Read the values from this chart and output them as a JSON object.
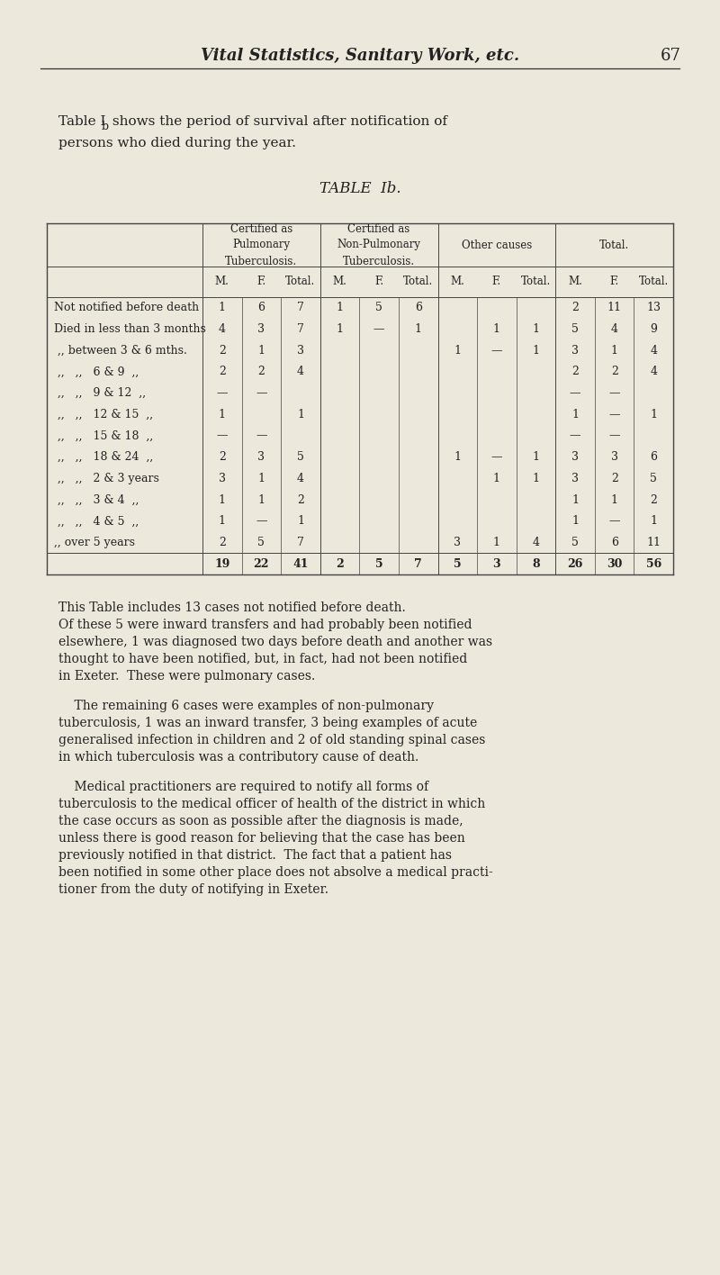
{
  "page_header": "Vital Statistics, Sanitary Work, etc.",
  "page_number": "67",
  "intro_line1": "Table I",
  "intro_line1b": "b",
  "intro_line1c": " shows the period of survival after notification of",
  "intro_line2": "persons who died during the year.",
  "table_title": "TABLE  Ib.",
  "bg_color": "#ede8dc",
  "col_groups": [
    "Certified as\nPulmonary\nTuberculosis.",
    "Certified as\nNon-Pulmonary\nTuberculosis.",
    "Other causes",
    "Total."
  ],
  "sub_headers": [
    "M.",
    "F.",
    "Total.",
    "M.",
    "F.",
    "Total.",
    "M.",
    "F.",
    "Total.",
    "M.",
    "F.",
    "Total."
  ],
  "rows": [
    {
      "label": "Not notified before death",
      "indent": false,
      "vals": [
        "1",
        "6",
        "7",
        "1",
        "5",
        "6",
        "",
        "",
        "",
        "2",
        "11",
        "13"
      ]
    },
    {
      "label": "Died in less than 3 months",
      "indent": false,
      "vals": [
        "4",
        "3",
        "7",
        "1",
        "—",
        "1",
        "",
        "1",
        "1",
        "5",
        "4",
        "9"
      ]
    },
    {
      "label": ",, between 3 & 6 mths.",
      "indent": true,
      "vals": [
        "2",
        "1",
        "3",
        "",
        "",
        "",
        "1",
        "—",
        "1",
        "3",
        "1",
        "4"
      ]
    },
    {
      "label": ",,   ,,   6 & 9  ,,",
      "indent": true,
      "vals": [
        "2",
        "2",
        "4",
        "",
        "",
        "",
        "",
        "",
        "",
        "2",
        "2",
        "4"
      ]
    },
    {
      "label": ",,   ,,   9 & 12  ,,",
      "indent": true,
      "vals": [
        "—",
        "—",
        "",
        "",
        "",
        "",
        "",
        "",
        "",
        "—",
        "—",
        ""
      ]
    },
    {
      "label": ",,   ,,   12 & 15  ,,",
      "indent": true,
      "vals": [
        "1",
        "",
        "1",
        "",
        "",
        "",
        "",
        "",
        "",
        "1",
        "—",
        "1"
      ]
    },
    {
      "label": ",,   ,,   15 & 18  ,,",
      "indent": true,
      "vals": [
        "—",
        "—",
        "",
        "",
        "",
        "",
        "",
        "",
        "",
        "—",
        "—",
        ""
      ]
    },
    {
      "label": ",,   ,,   18 & 24  ,,",
      "indent": true,
      "vals": [
        "2",
        "3",
        "5",
        "",
        "",
        "",
        "1",
        "—",
        "1",
        "3",
        "3",
        "6"
      ]
    },
    {
      "label": ",,   ,,   2 & 3 years",
      "indent": true,
      "vals": [
        "3",
        "1",
        "4",
        "",
        "",
        "",
        "",
        "1",
        "1",
        "3",
        "2",
        "5"
      ]
    },
    {
      "label": ",,   ,,   3 & 4  ,,",
      "indent": true,
      "vals": [
        "1",
        "1",
        "2",
        "",
        "",
        "",
        "",
        "",
        "",
        "1",
        "1",
        "2"
      ]
    },
    {
      "label": ",,   ,,   4 & 5  ,,",
      "indent": true,
      "vals": [
        "1",
        "—",
        "1",
        "",
        "",
        "",
        "",
        "",
        "",
        "1",
        "—",
        "1"
      ]
    },
    {
      "label": ",, over 5 years",
      "indent": false,
      "vals": [
        "2",
        "5",
        "7",
        "",
        "",
        "",
        "3",
        "1",
        "4",
        "5",
        "6",
        "11"
      ]
    },
    {
      "label": "",
      "indent": false,
      "is_total": true,
      "vals": [
        "19",
        "22",
        "41",
        "2",
        "5",
        "7",
        "5",
        "3",
        "8",
        "26",
        "30",
        "56"
      ]
    }
  ],
  "footnote_paragraphs": [
    "This Table includes 13 cases not notified before death.\nOf these 5 were inward transfers and had probably been notified\nelsewhere, 1 was diagnosed two days before death and another was\nthought to have been notified, but, in fact, had not been notified\nin Exeter.  These were pulmonary cases.",
    "    The remaining 6 cases were examples of non-pulmonary\ntuberculosis, 1 was an inward transfer, 3 being examples of acute\ngeneralised infection in children and 2 of old standing spinal cases\nin which tuberculosis was a contributory cause of death.",
    "    Medical practitioners are required to notify all forms of\ntuberculosis to the medical officer of health of the district in which\nthe case occurs as soon as possible after the diagnosis is made,\nunless there is good reason for believing that the case has been\npreviously notified in that district.  The fact that a patient has\nbeen notified in some other place does not absolve a medical practi-\ntioner from the duty of notifying in Exeter."
  ]
}
